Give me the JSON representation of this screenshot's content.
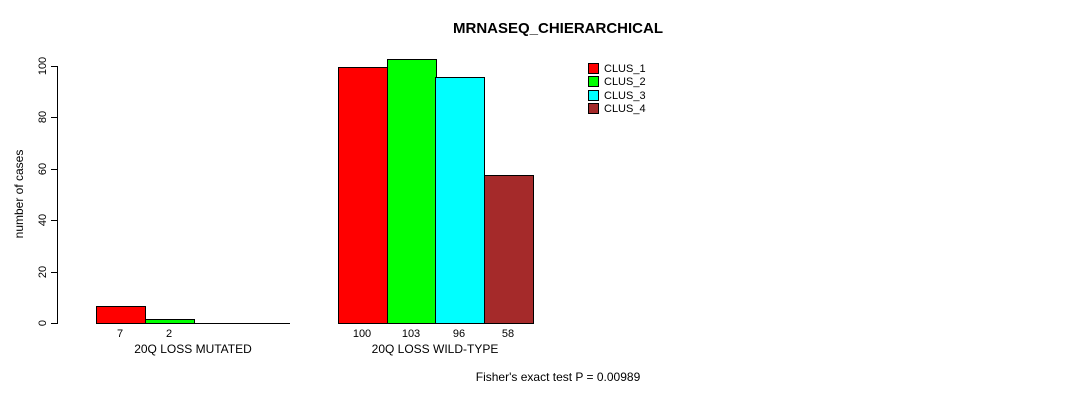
{
  "chart_data": {
    "type": "bar",
    "title": "MRNASEQ_CHIERARCHICAL",
    "xlabel": "",
    "ylabel": "number of cases",
    "ylim": [
      0,
      100
    ],
    "yticks": [
      0,
      20,
      40,
      60,
      80,
      100
    ],
    "grid": false,
    "legend_position": "top-right",
    "categories": [
      "20Q LOSS MUTATED",
      "20Q LOSS WILD-TYPE"
    ],
    "series": [
      {
        "name": "CLUS_1",
        "color": "#FF0000",
        "values": [
          7,
          100
        ]
      },
      {
        "name": "CLUS_2",
        "color": "#00FF00",
        "values": [
          2,
          103
        ]
      },
      {
        "name": "CLUS_3",
        "color": "#00FFFF",
        "values": [
          0,
          96
        ]
      },
      {
        "name": "CLUS_4",
        "color": "#A52A2A",
        "values": [
          0,
          58
        ]
      }
    ],
    "bar_labels": [
      [
        "7",
        "2",
        "",
        ""
      ],
      [
        "100",
        "103",
        "96",
        "58"
      ]
    ],
    "annotation": "Fisher's exact test P = 0.00989"
  },
  "colors": {
    "axis": "#000000",
    "background": "#FFFFFF"
  }
}
